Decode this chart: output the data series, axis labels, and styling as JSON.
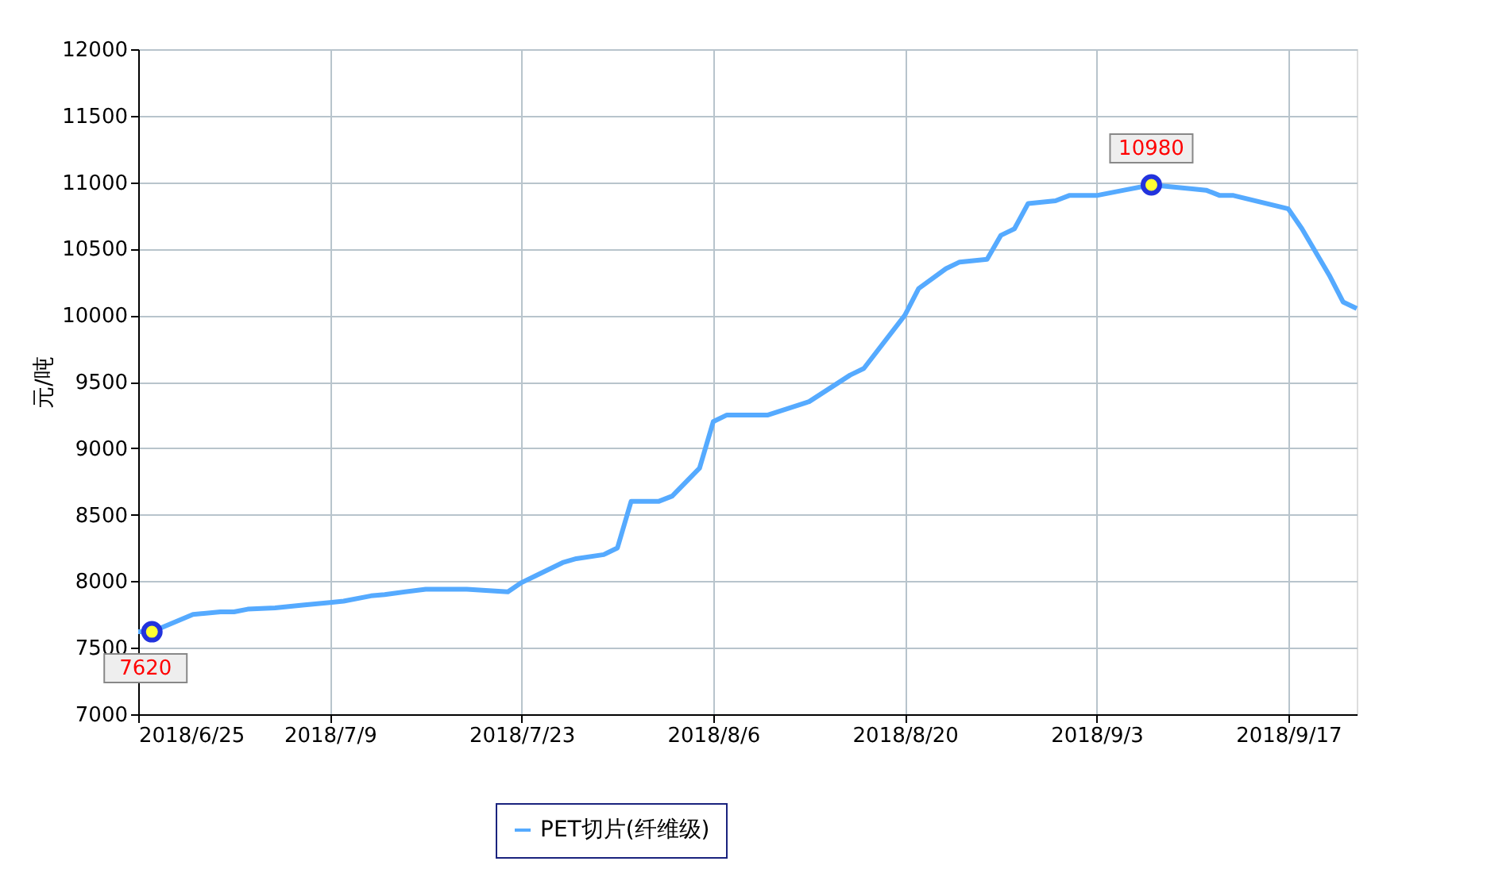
{
  "chart_data": {
    "type": "line",
    "ylabel": "元/吨",
    "legend": "bottom",
    "grid": true,
    "marker": "none",
    "line_style": "solid",
    "x": [
      "2018-06-25",
      "2018-06-26",
      "2018-06-29",
      "2018-07-01",
      "2018-07-02",
      "2018-07-03",
      "2018-07-05",
      "2018-07-06",
      "2018-07-07",
      "2018-07-09",
      "2018-07-10",
      "2018-07-12",
      "2018-07-13",
      "2018-07-16",
      "2018-07-19",
      "2018-07-22",
      "2018-07-23",
      "2018-07-24",
      "2018-07-26",
      "2018-07-27",
      "2018-07-29",
      "2018-07-30",
      "2018-07-31",
      "2018-08-02",
      "2018-08-03",
      "2018-08-05",
      "2018-08-06",
      "2018-08-07",
      "2018-08-10",
      "2018-08-13",
      "2018-08-16",
      "2018-08-17",
      "2018-08-20",
      "2018-08-21",
      "2018-08-23",
      "2018-08-24",
      "2018-08-26",
      "2018-08-27",
      "2018-08-28",
      "2018-08-29",
      "2018-08-31",
      "2018-09-01",
      "2018-09-03",
      "2018-09-05",
      "2018-09-07",
      "2018-09-10",
      "2018-09-11",
      "2018-09-12",
      "2018-09-13",
      "2018-09-17",
      "2018-09-18",
      "2018-09-20",
      "2018-09-21",
      "2018-09-22"
    ],
    "series": [
      {
        "name": "PET切片(纤维级)",
        "color": "#55aaff",
        "values": [
          7620,
          7620,
          7750,
          7770,
          7770,
          7790,
          7800,
          7810,
          7820,
          7840,
          7850,
          7890,
          7900,
          7940,
          7940,
          7920,
          7990,
          8040,
          8140,
          8170,
          8200,
          8250,
          8600,
          8600,
          8640,
          8850,
          9200,
          9250,
          9250,
          9350,
          9550,
          9600,
          10000,
          10200,
          10350,
          10400,
          10420,
          10600,
          10650,
          10840,
          10860,
          10900,
          10900,
          10940,
          10980,
          10950,
          10940,
          10900,
          10900,
          10800,
          10650,
          10300,
          10100,
          10050
        ]
      }
    ],
    "annotations": [
      {
        "text": "7620",
        "x": "2018-06-26",
        "y": 7620
      },
      {
        "text": "10980",
        "x": "2018-09-07",
        "y": 10980
      }
    ],
    "xlim": [
      "2018-06-25",
      "2018-09-22"
    ],
    "xticks": [
      {
        "value": "2018-06-25",
        "label": "2018/6/25"
      },
      {
        "value": "2018-07-09",
        "label": "2018/7/9"
      },
      {
        "value": "2018-07-23",
        "label": "2018/7/23"
      },
      {
        "value": "2018-08-06",
        "label": "2018/8/6"
      },
      {
        "value": "2018-08-20",
        "label": "2018/8/20"
      },
      {
        "value": "2018-09-03",
        "label": "2018/9/3"
      },
      {
        "value": "2018-09-17",
        "label": "2018/9/17"
      }
    ],
    "ylim": [
      7000,
      12000
    ],
    "yticks": [
      7000,
      7500,
      8000,
      8500,
      9000,
      9500,
      10000,
      10500,
      11000,
      11500,
      12000
    ]
  }
}
